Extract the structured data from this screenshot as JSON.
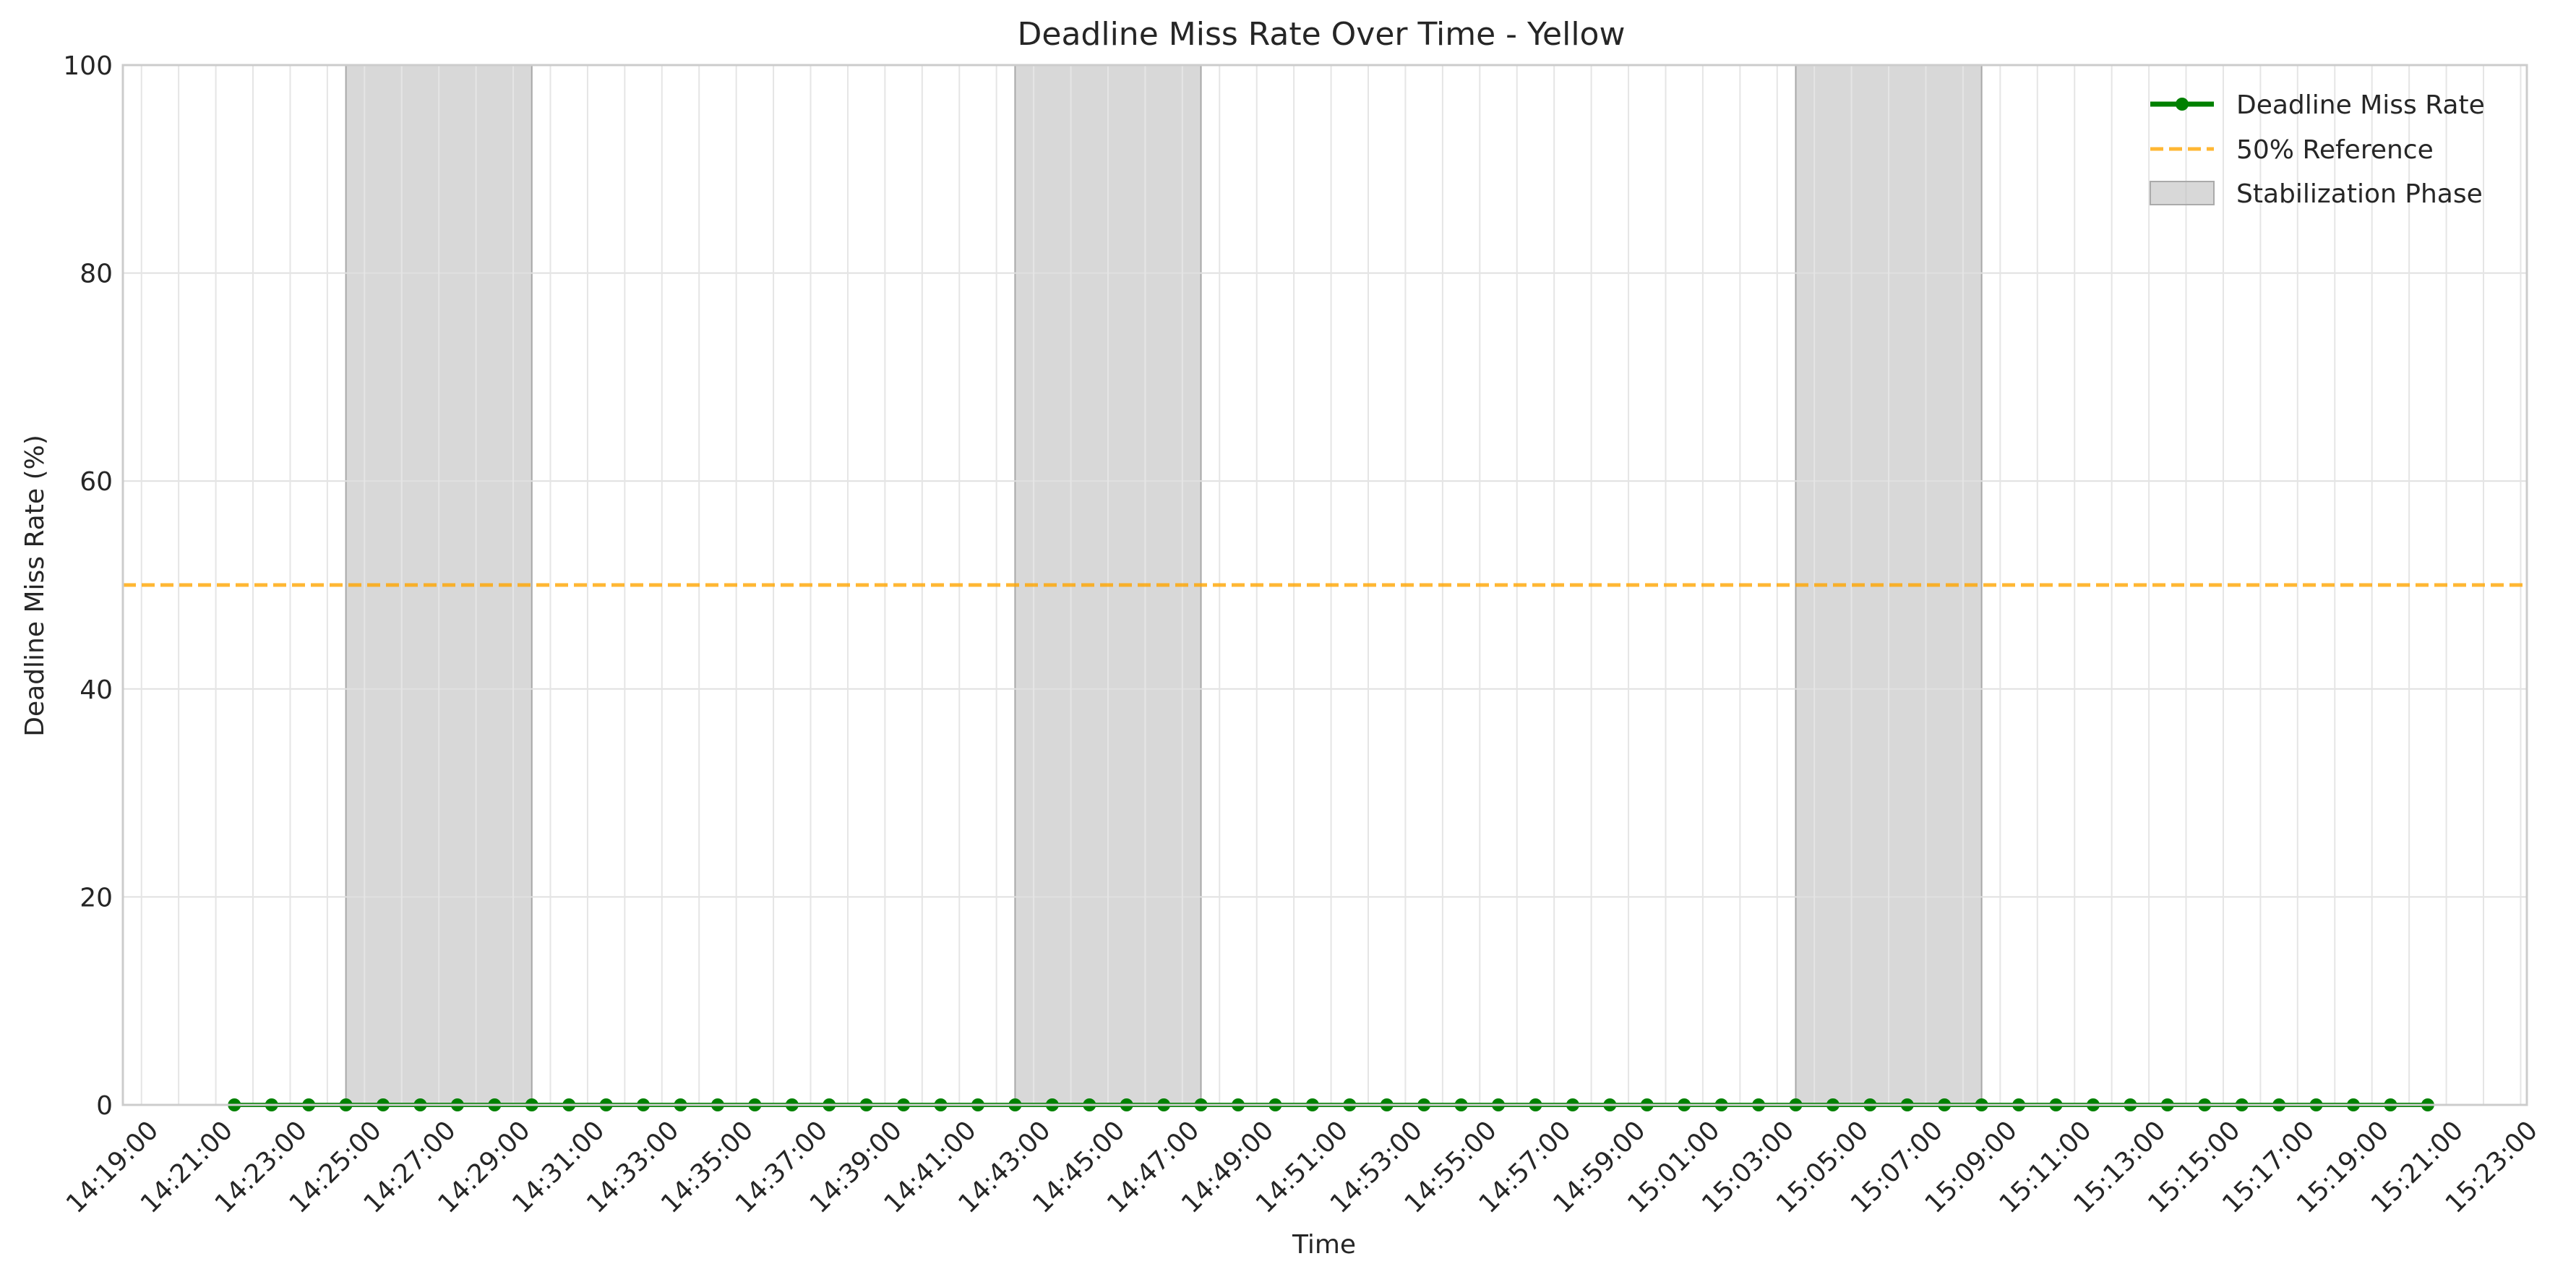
{
  "chart_data": {
    "type": "line",
    "title": "Deadline Miss Rate Over Time - Yellow",
    "xlabel": "Time",
    "ylabel": "Deadline Miss Rate (%)",
    "ylim": [
      0,
      100
    ],
    "xlim": [
      "14:18:30",
      "15:23:10"
    ],
    "yticks": [
      0,
      20,
      40,
      60,
      80,
      100
    ],
    "xticks": [
      "14:19:00",
      "14:21:00",
      "14:23:00",
      "14:25:00",
      "14:27:00",
      "14:29:00",
      "14:31:00",
      "14:33:00",
      "14:35:00",
      "14:37:00",
      "14:39:00",
      "14:41:00",
      "14:43:00",
      "14:45:00",
      "14:47:00",
      "14:49:00",
      "14:51:00",
      "14:53:00",
      "14:55:00",
      "14:57:00",
      "14:59:00",
      "15:01:00",
      "15:03:00",
      "15:05:00",
      "15:07:00",
      "15:09:00",
      "15:11:00",
      "15:13:00",
      "15:15:00",
      "15:17:00",
      "15:19:00",
      "15:21:00",
      "15:23:00"
    ],
    "grid": true,
    "legend_position": "top-right",
    "series": [
      {
        "name": "Deadline Miss Rate",
        "color": "#008000",
        "marker": "circle",
        "x": [
          "14:21:30",
          "14:22:30",
          "14:23:30",
          "14:24:30",
          "14:25:30",
          "14:26:30",
          "14:27:30",
          "14:28:30",
          "14:29:30",
          "14:30:30",
          "14:31:30",
          "14:32:30",
          "14:33:30",
          "14:34:30",
          "14:35:30",
          "14:36:30",
          "14:37:30",
          "14:38:30",
          "14:39:30",
          "14:40:30",
          "14:41:30",
          "14:42:30",
          "14:43:30",
          "14:44:30",
          "14:45:30",
          "14:46:30",
          "14:47:30",
          "14:48:30",
          "14:49:30",
          "14:50:30",
          "14:51:30",
          "14:52:30",
          "14:53:30",
          "14:54:30",
          "14:55:30",
          "14:56:30",
          "14:57:30",
          "14:58:30",
          "14:59:30",
          "15:00:30",
          "15:01:30",
          "15:02:30",
          "15:03:30",
          "15:04:30",
          "15:05:30",
          "15:06:30",
          "15:07:30",
          "15:08:30",
          "15:09:30",
          "15:10:30",
          "15:11:30",
          "15:12:30",
          "15:13:30",
          "15:14:30",
          "15:15:30",
          "15:16:30",
          "15:17:30",
          "15:18:30",
          "15:19:30",
          "15:20:30"
        ],
        "values": [
          0,
          0,
          0,
          0,
          0,
          0,
          0,
          0,
          0,
          0,
          0,
          0,
          0,
          0,
          0,
          0,
          0,
          0,
          0,
          0,
          0,
          0,
          0,
          0,
          0,
          0,
          0,
          0,
          0,
          0,
          0,
          0,
          0,
          0,
          0,
          0,
          0,
          0,
          0,
          0,
          0,
          0,
          0,
          0,
          0,
          0,
          0,
          0,
          0,
          0,
          0,
          0,
          0,
          0,
          0,
          0,
          0,
          0,
          0,
          0
        ]
      }
    ],
    "reference_line": {
      "name": "50% Reference",
      "value": 50,
      "color": "#ffa500",
      "style": "dashed"
    },
    "shaded_regions": {
      "name": "Stabilization Phase",
      "color": "#bebebe",
      "ranges": [
        [
          "14:24:30",
          "14:29:30"
        ],
        [
          "14:42:30",
          "14:47:30"
        ],
        [
          "15:03:30",
          "15:08:30"
        ]
      ]
    }
  }
}
